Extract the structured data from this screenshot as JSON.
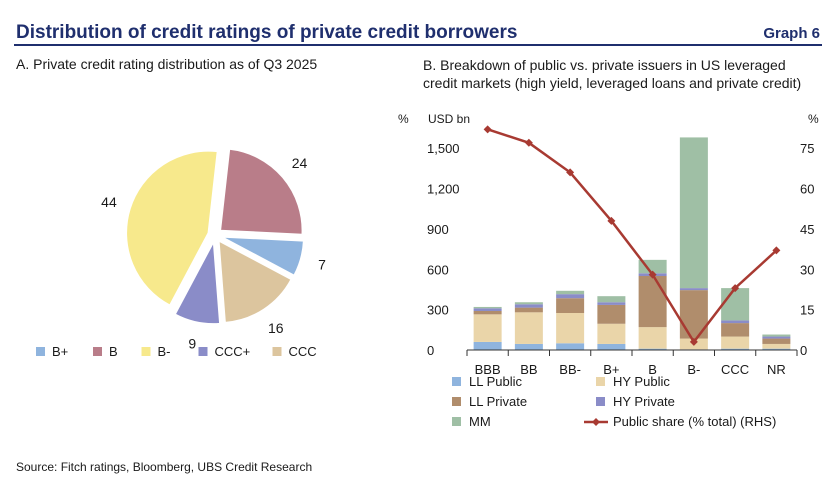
{
  "header": {
    "title": "Distribution of credit ratings of private credit borrowers",
    "graph_label": "Graph 6"
  },
  "footer": {
    "source": "Source: Fitch ratings, Bloomberg, UBS Credit Research"
  },
  "chart_data": [
    {
      "type": "pie",
      "title": "A. Private credit rating distribution as of Q3 2025",
      "labels": [
        "B+",
        "B",
        "B-",
        "CCC+",
        "CCC"
      ],
      "values": [
        7,
        24,
        44,
        9,
        16
      ],
      "colors": [
        "#8fb4de",
        "#b97d89",
        "#f7e98c",
        "#8a8cc8",
        "#dcc59e"
      ],
      "legend_position": "bottom"
    },
    {
      "type": "bar",
      "stacked": true,
      "title": "B. Breakdown of public vs. private issuers in US leveraged credit markets (high yield, leveraged loans and private credit)",
      "left_unit": "%",
      "ylabel": "USD bn",
      "right_unit": "%",
      "categories": [
        "BBB",
        "BB",
        "BB-",
        "B+",
        "B",
        "B-",
        "CCC",
        "NR"
      ],
      "ylim": [
        0,
        1650
      ],
      "y_ticks": [
        0,
        300,
        600,
        900,
        1200,
        1500
      ],
      "y2lim": [
        0,
        82.5
      ],
      "y2_ticks": [
        0,
        15,
        30,
        45,
        60,
        75
      ],
      "legend_position": "bottom",
      "series": [
        {
          "name": "LL Public",
          "color": "#8fb4de",
          "values": [
            60,
            45,
            50,
            45,
            10,
            5,
            10,
            10
          ]
        },
        {
          "name": "HY Public",
          "color": "#ead5a9",
          "values": [
            205,
            235,
            225,
            150,
            160,
            80,
            90,
            35
          ]
        },
        {
          "name": "LL Private",
          "color": "#b08d6c",
          "values": [
            25,
            35,
            110,
            140,
            380,
            360,
            100,
            40
          ]
        },
        {
          "name": "HY Private",
          "color": "#8a8cc8",
          "values": [
            20,
            25,
            30,
            20,
            20,
            15,
            20,
            15
          ]
        },
        {
          "name": "MM",
          "color": "#9fbfa5",
          "values": [
            10,
            15,
            25,
            45,
            100,
            1120,
            240,
            15
          ]
        }
      ],
      "line_series": {
        "name": "Public share (% total) (RHS)",
        "color": "#a83a32",
        "axis": "right",
        "values": [
          82,
          77,
          66,
          48,
          28,
          3,
          23,
          37
        ]
      }
    }
  ]
}
